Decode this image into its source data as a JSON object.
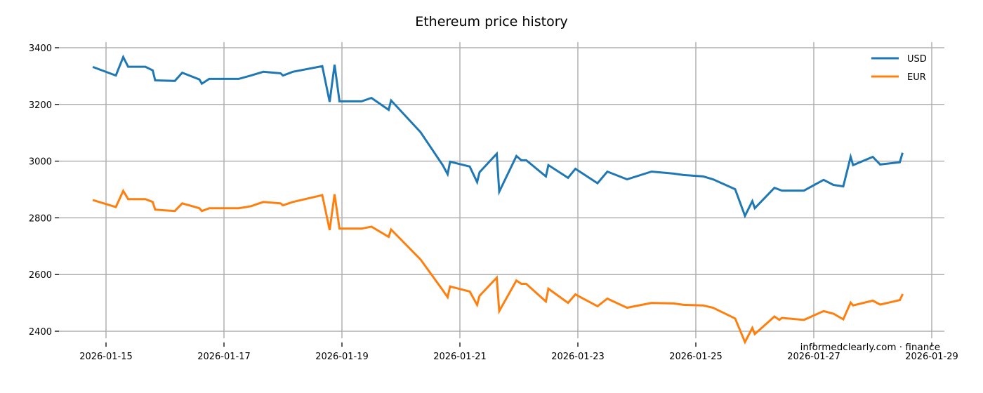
{
  "chart_data": {
    "type": "line",
    "title": "Ethereum price history",
    "xlabel": "",
    "ylabel": "",
    "xlim": [
      "2026-01-14T00:00",
      "2026-01-29T04:00"
    ],
    "ylim": [
      2320,
      3420
    ],
    "grid": true,
    "legend_position": "upper right",
    "x_ticks": [
      "2026-01-15",
      "2026-01-17",
      "2026-01-19",
      "2026-01-21",
      "2026-01-23",
      "2026-01-25",
      "2026-01-27",
      "2026-01-29"
    ],
    "y_ticks": [
      2400,
      2600,
      2800,
      3000,
      3200,
      3400
    ],
    "annotation": "informedclearly.com · finance",
    "series": [
      {
        "name": "USD",
        "color": "#1f77b4",
        "points": [
          [
            "2026-01-14T19:00",
            3331
          ],
          [
            "2026-01-15T04:00",
            3302
          ],
          [
            "2026-01-15T07:00",
            3367
          ],
          [
            "2026-01-15T09:00",
            3333
          ],
          [
            "2026-01-15T16:00",
            3333
          ],
          [
            "2026-01-15T19:00",
            3320
          ],
          [
            "2026-01-15T20:00",
            3285
          ],
          [
            "2026-01-16T04:00",
            3283
          ],
          [
            "2026-01-16T07:00",
            3312
          ],
          [
            "2026-01-16T14:00",
            3288
          ],
          [
            "2026-01-16T15:00",
            3273
          ],
          [
            "2026-01-16T18:00",
            3290
          ],
          [
            "2026-01-17T06:00",
            3290
          ],
          [
            "2026-01-17T11:00",
            3302
          ],
          [
            "2026-01-17T16:00",
            3315
          ],
          [
            "2026-01-17T23:00",
            3310
          ],
          [
            "2026-01-18T00:00",
            3302
          ],
          [
            "2026-01-18T04:00",
            3315
          ],
          [
            "2026-01-18T16:00",
            3335
          ],
          [
            "2026-01-18T19:00",
            3209
          ],
          [
            "2026-01-18T21:00",
            3340
          ],
          [
            "2026-01-18T23:00",
            3211
          ],
          [
            "2026-01-19T08:00",
            3211
          ],
          [
            "2026-01-19T12:00",
            3223
          ],
          [
            "2026-01-19T19:00",
            3181
          ],
          [
            "2026-01-19T20:00",
            3214
          ],
          [
            "2026-01-20T08:00",
            3102
          ],
          [
            "2026-01-20T17:00",
            2986
          ],
          [
            "2026-01-20T19:00",
            2954
          ],
          [
            "2026-01-20T20:00",
            2998
          ],
          [
            "2026-01-21T04:00",
            2981
          ],
          [
            "2026-01-21T07:00",
            2926
          ],
          [
            "2026-01-21T08:00",
            2961
          ],
          [
            "2026-01-21T15:00",
            3026
          ],
          [
            "2026-01-21T16:00",
            2892
          ],
          [
            "2026-01-21T23:00",
            3018
          ],
          [
            "2026-01-22T01:00",
            3003
          ],
          [
            "2026-01-22T03:00",
            3003
          ],
          [
            "2026-01-22T11:00",
            2946
          ],
          [
            "2026-01-22T12:00",
            2986
          ],
          [
            "2026-01-22T20:00",
            2941
          ],
          [
            "2026-01-22T23:00",
            2973
          ],
          [
            "2026-01-23T08:00",
            2922
          ],
          [
            "2026-01-23T12:00",
            2963
          ],
          [
            "2026-01-23T20:00",
            2936
          ],
          [
            "2026-01-24T06:00",
            2963
          ],
          [
            "2026-01-24T15:00",
            2956
          ],
          [
            "2026-01-24T19:00",
            2951
          ],
          [
            "2026-01-25T03:00",
            2946
          ],
          [
            "2026-01-25T07:00",
            2936
          ],
          [
            "2026-01-25T16:00",
            2901
          ],
          [
            "2026-01-25T20:00",
            2807
          ],
          [
            "2026-01-25T23:00",
            2859
          ],
          [
            "2026-01-26T00:00",
            2834
          ],
          [
            "2026-01-26T08:00",
            2906
          ],
          [
            "2026-01-26T11:00",
            2896
          ],
          [
            "2026-01-26T20:00",
            2896
          ],
          [
            "2026-01-27T04:00",
            2934
          ],
          [
            "2026-01-27T08:00",
            2916
          ],
          [
            "2026-01-27T12:00",
            2911
          ],
          [
            "2026-01-27T15:00",
            3015
          ],
          [
            "2026-01-27T16:00",
            2986
          ],
          [
            "2026-01-28T00:00",
            3015
          ],
          [
            "2026-01-28T03:00",
            2988
          ],
          [
            "2026-01-28T11:00",
            2996
          ],
          [
            "2026-01-28T12:00",
            3026
          ]
        ]
      },
      {
        "name": "EUR",
        "color": "#ff7f0e",
        "points": [
          [
            "2026-01-14T19:00",
            2862
          ],
          [
            "2026-01-15T04:00",
            2838
          ],
          [
            "2026-01-15T07:00",
            2895
          ],
          [
            "2026-01-15T09:00",
            2866
          ],
          [
            "2026-01-15T16:00",
            2866
          ],
          [
            "2026-01-15T19:00",
            2856
          ],
          [
            "2026-01-15T20:00",
            2829
          ],
          [
            "2026-01-16T04:00",
            2824
          ],
          [
            "2026-01-16T07:00",
            2851
          ],
          [
            "2026-01-16T14:00",
            2834
          ],
          [
            "2026-01-16T15:00",
            2824
          ],
          [
            "2026-01-16T18:00",
            2834
          ],
          [
            "2026-01-17T06:00",
            2834
          ],
          [
            "2026-01-17T11:00",
            2841
          ],
          [
            "2026-01-17T16:00",
            2856
          ],
          [
            "2026-01-17T23:00",
            2851
          ],
          [
            "2026-01-18T00:00",
            2844
          ],
          [
            "2026-01-18T04:00",
            2856
          ],
          [
            "2026-01-18T16:00",
            2880
          ],
          [
            "2026-01-18T19:00",
            2757
          ],
          [
            "2026-01-18T21:00",
            2883
          ],
          [
            "2026-01-18T23:00",
            2762
          ],
          [
            "2026-01-19T08:00",
            2762
          ],
          [
            "2026-01-19T12:00",
            2769
          ],
          [
            "2026-01-19T19:00",
            2733
          ],
          [
            "2026-01-19T20:00",
            2759
          ],
          [
            "2026-01-20T08:00",
            2653
          ],
          [
            "2026-01-20T17:00",
            2545
          ],
          [
            "2026-01-20T19:00",
            2520
          ],
          [
            "2026-01-20T20:00",
            2558
          ],
          [
            "2026-01-21T04:00",
            2540
          ],
          [
            "2026-01-21T07:00",
            2493
          ],
          [
            "2026-01-21T08:00",
            2525
          ],
          [
            "2026-01-21T15:00",
            2589
          ],
          [
            "2026-01-21T16:00",
            2471
          ],
          [
            "2026-01-21T23:00",
            2579
          ],
          [
            "2026-01-22T01:00",
            2567
          ],
          [
            "2026-01-22T03:00",
            2567
          ],
          [
            "2026-01-22T11:00",
            2505
          ],
          [
            "2026-01-22T12:00",
            2550
          ],
          [
            "2026-01-22T20:00",
            2500
          ],
          [
            "2026-01-22T23:00",
            2530
          ],
          [
            "2026-01-23T08:00",
            2488
          ],
          [
            "2026-01-23T12:00",
            2515
          ],
          [
            "2026-01-23T20:00",
            2483
          ],
          [
            "2026-01-24T06:00",
            2500
          ],
          [
            "2026-01-24T15:00",
            2498
          ],
          [
            "2026-01-24T19:00",
            2493
          ],
          [
            "2026-01-25T03:00",
            2491
          ],
          [
            "2026-01-25T07:00",
            2483
          ],
          [
            "2026-01-25T16:00",
            2445
          ],
          [
            "2026-01-25T20:00",
            2362
          ],
          [
            "2026-01-25T23:00",
            2412
          ],
          [
            "2026-01-26T00:00",
            2390
          ],
          [
            "2026-01-26T08:00",
            2452
          ],
          [
            "2026-01-26T10:00",
            2440
          ],
          [
            "2026-01-26T11:00",
            2447
          ],
          [
            "2026-01-26T20:00",
            2440
          ],
          [
            "2026-01-27T04:00",
            2471
          ],
          [
            "2026-01-27T08:00",
            2462
          ],
          [
            "2026-01-27T12:00",
            2442
          ],
          [
            "2026-01-27T15:00",
            2501
          ],
          [
            "2026-01-27T16:00",
            2491
          ],
          [
            "2026-01-28T00:00",
            2508
          ],
          [
            "2026-01-28T03:00",
            2494
          ],
          [
            "2026-01-28T11:00",
            2510
          ],
          [
            "2026-01-28T12:00",
            2528
          ]
        ]
      }
    ]
  },
  "legend": {
    "items": [
      {
        "label": "USD",
        "color": "#1f77b4"
      },
      {
        "label": "EUR",
        "color": "#ff7f0e"
      }
    ]
  }
}
